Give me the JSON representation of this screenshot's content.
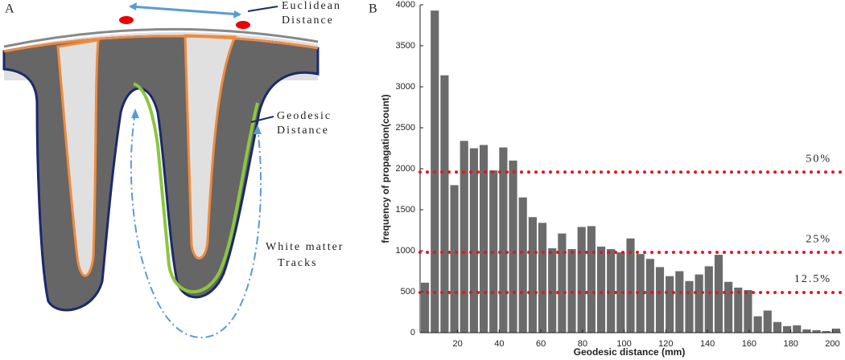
{
  "diagram": {
    "label": "A",
    "euclidean": [
      "Euclidean",
      "Distance"
    ],
    "geodesic": [
      "Geodesic",
      "Distance"
    ],
    "white_matter": [
      "White matter",
      "Tracks"
    ]
  },
  "chart_data": {
    "type": "histogram",
    "label": "B",
    "xlabel": "Geodesic distance (mm)",
    "ylabel": "frequency of propagation(count)",
    "bins": [
      2.0,
      6.7,
      11.4,
      16.1,
      20.8,
      25.5,
      30.2,
      34.9,
      39.6,
      44.3,
      49.0,
      53.7,
      58.4,
      63.1,
      67.8,
      72.5,
      77.2,
      81.9,
      86.6,
      91.3,
      96.0,
      100.7,
      105.4,
      110.1,
      114.8,
      119.5,
      124.2,
      128.9,
      133.6,
      138.3,
      143.0,
      147.7,
      152.4,
      157.1,
      161.8,
      166.5,
      171.2,
      175.9,
      180.6,
      185.3,
      190.0,
      194.7,
      199.4,
      204.1
    ],
    "values": [
      610,
      3930,
      3140,
      1800,
      2340,
      2250,
      2290,
      1980,
      2260,
      2100,
      1650,
      1410,
      1340,
      1030,
      1210,
      1020,
      1290,
      1300,
      1050,
      1020,
      980,
      1150,
      960,
      900,
      800,
      690,
      750,
      630,
      710,
      810,
      950,
      620,
      550,
      520,
      200,
      270,
      130,
      80,
      90,
      40,
      30,
      20,
      50
    ],
    "color": "#6b6b6b",
    "xlim": [
      2.0,
      204.1
    ],
    "xticks": [
      20,
      40,
      60,
      80,
      100,
      120,
      140,
      160,
      180,
      200
    ],
    "ylim": [
      0,
      4000
    ],
    "yticks": [
      0,
      500,
      1000,
      1500,
      2000,
      2500,
      3000,
      3500,
      4000
    ],
    "reference_lines": [
      {
        "y": 1960,
        "text": "50%"
      },
      {
        "y": 980,
        "text": "25%"
      },
      {
        "y": 490,
        "text": "12.5%"
      }
    ],
    "reference_color": "#e8141b"
  }
}
